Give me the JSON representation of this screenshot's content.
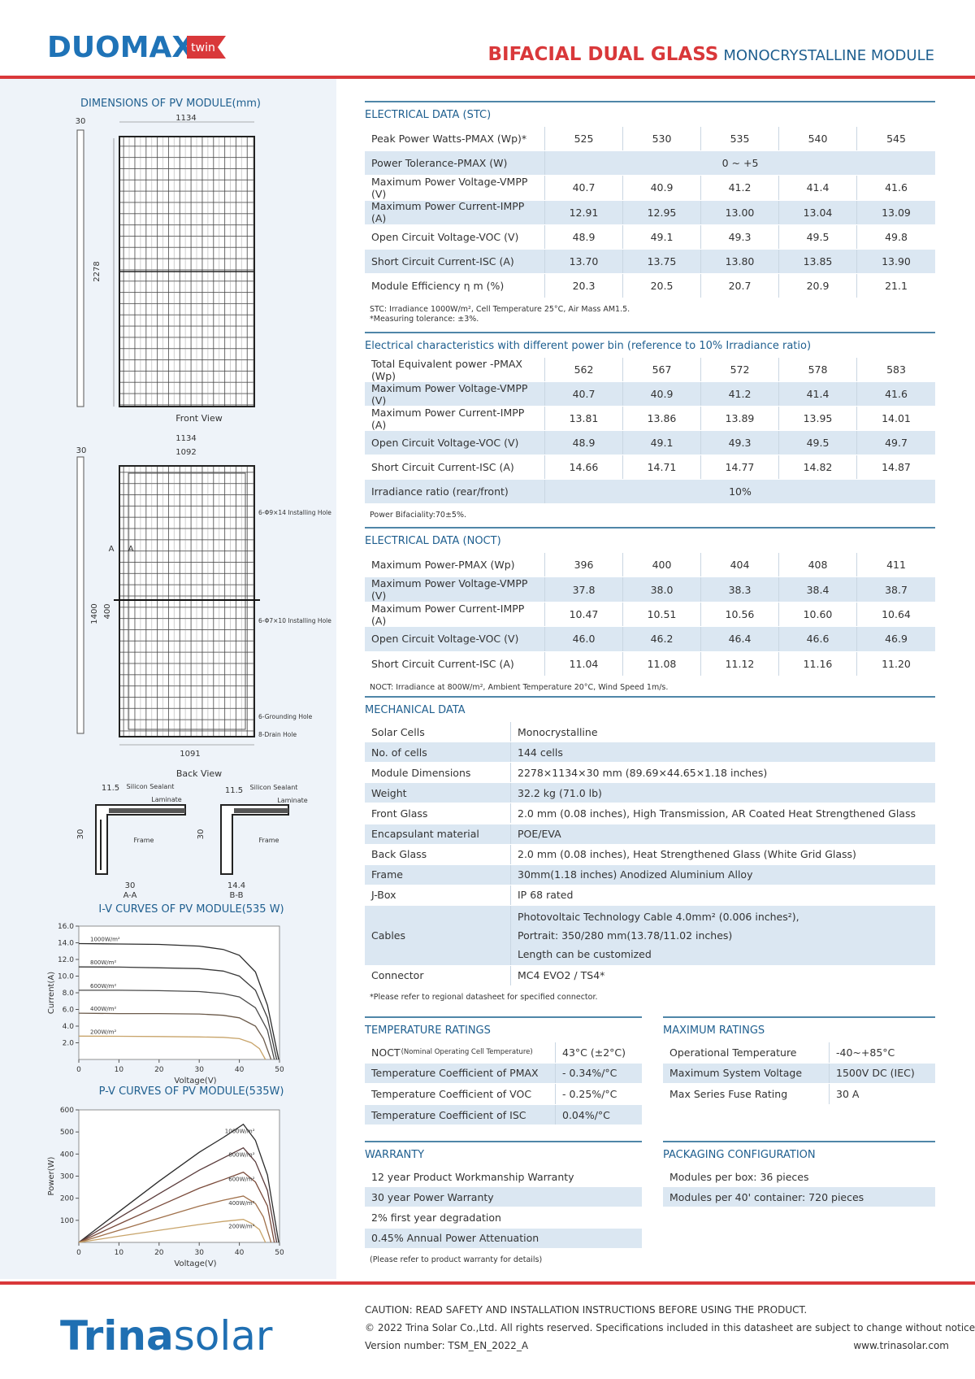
{
  "header": {
    "logo": "DUOMAX",
    "logo_badge": "twin",
    "title_bold": "BIFACIAL DUAL GLASS",
    "title_rest": "MONOCRYSTALLINE MODULE"
  },
  "drawings": {
    "title": "DIMENSIONS OF PV MODULE(mm)",
    "labels": [
      "30",
      "1134",
      "2278",
      "Front View",
      "1134",
      "1092",
      "30",
      "1400",
      "400",
      "A",
      "A",
      "6-Φ9×14 Installing Hole",
      "6-Φ7×10 Installing Hole",
      "6-Grounding Hole",
      "8-Drain Hole",
      "1091",
      "Back View",
      "11.5",
      "Silicon Sealant",
      "Laminate",
      "Frame",
      "30",
      "30",
      "A-A",
      "11.5",
      "Silicon Sealant",
      "Laminate",
      "Frame",
      "30",
      "14.4",
      "B-B"
    ]
  },
  "chart_data": [
    {
      "type": "line",
      "title": "I-V CURVES OF PV MODULE(535 W)",
      "x_label": "Voltage(V)",
      "y_label": "Current(A)",
      "xlim": [
        0,
        50
      ],
      "ylim": [
        0,
        16
      ],
      "xticks": [
        0,
        10,
        20,
        30,
        40,
        50
      ],
      "yticks": [
        {
          "value": 2,
          "label": "2.0"
        },
        {
          "value": 4,
          "label": "4.0"
        },
        {
          "value": 6,
          "label": "6.0"
        },
        {
          "value": 8,
          "label": "8.0"
        },
        {
          "value": 10,
          "label": "10.0"
        },
        {
          "value": 12,
          "label": "12.0"
        },
        {
          "value": 14,
          "label": "14.0"
        },
        {
          "value": 16,
          "label": "16.0"
        }
      ],
      "series": [
        {
          "name": "1000W/m²",
          "color": "#2b2b2b",
          "x": [
            0,
            10,
            20,
            30,
            36,
            40,
            44,
            47,
            49.8
          ],
          "values": [
            13.9,
            13.85,
            13.8,
            13.6,
            13.2,
            12.5,
            10.5,
            6.5,
            0
          ]
        },
        {
          "name": "800W/m²",
          "color": "#3a3a3a",
          "x": [
            0,
            10,
            20,
            30,
            36,
            40,
            44,
            47,
            49.3
          ],
          "values": [
            11.1,
            11.08,
            11.0,
            10.9,
            10.6,
            10.0,
            8.3,
            5.0,
            0
          ]
        },
        {
          "name": "600W/m²",
          "color": "#4a4a4a",
          "x": [
            0,
            10,
            20,
            30,
            36,
            40,
            44,
            47,
            48.7
          ],
          "values": [
            8.3,
            8.3,
            8.25,
            8.15,
            7.9,
            7.5,
            6.2,
            3.5,
            0
          ]
        },
        {
          "name": "400W/m²",
          "color": "#6b5a4a",
          "x": [
            0,
            10,
            20,
            30,
            36,
            40,
            44,
            46,
            47.9
          ],
          "values": [
            5.55,
            5.5,
            5.5,
            5.45,
            5.3,
            5.0,
            4.0,
            2.5,
            0
          ]
        },
        {
          "name": "200W/m²",
          "color": "#c8a46a",
          "x": [
            0,
            10,
            20,
            30,
            36,
            40,
            43,
            45,
            46.5
          ],
          "values": [
            2.8,
            2.78,
            2.75,
            2.7,
            2.65,
            2.5,
            2.0,
            1.3,
            0
          ]
        }
      ]
    },
    {
      "type": "line",
      "title": "P-V CURVES OF PV MODULE(535W)",
      "x_label": "Voltage(V)",
      "y_label": "Power(W)",
      "xlim": [
        0,
        50
      ],
      "ylim": [
        0,
        600
      ],
      "xticks": [
        0,
        10,
        20,
        30,
        40,
        50
      ],
      "yticks": [
        100,
        200,
        300,
        400,
        500,
        600
      ],
      "series": [
        {
          "name": "1000W/m²",
          "color": "#2b2b2b",
          "x": [
            0,
            10,
            20,
            30,
            36,
            41,
            44,
            47,
            49.8
          ],
          "values": [
            0,
            139,
            277,
            408,
            475,
            535,
            462,
            305,
            0
          ]
        },
        {
          "name": "800W/m²",
          "color": "#5a3b3b",
          "x": [
            0,
            10,
            20,
            30,
            36,
            41,
            44,
            47,
            49.3
          ],
          "values": [
            0,
            111,
            220,
            327,
            382,
            428,
            365,
            235,
            0
          ]
        },
        {
          "name": "600W/m²",
          "color": "#7a4a3a",
          "x": [
            0,
            10,
            20,
            30,
            36,
            41,
            44,
            47,
            48.7
          ],
          "values": [
            0,
            83,
            165,
            245,
            284,
            318,
            273,
            165,
            0
          ]
        },
        {
          "name": "400W/m²",
          "color": "#a0704a",
          "x": [
            0,
            10,
            20,
            30,
            36,
            41,
            44,
            46,
            47.9
          ],
          "values": [
            0,
            55,
            110,
            164,
            191,
            210,
            176,
            115,
            0
          ]
        },
        {
          "name": "200W/m²",
          "color": "#c8a46a",
          "x": [
            0,
            10,
            20,
            30,
            36,
            41,
            43,
            45,
            46.5
          ],
          "values": [
            0,
            28,
            55,
            81,
            95,
            104,
            86,
            58,
            0
          ]
        }
      ]
    }
  ],
  "stc": {
    "heading": "ELECTRICAL DATA (STC)",
    "rows": [
      {
        "label": "Peak Power Watts-PMAX (Wp)*",
        "values": [
          "525",
          "530",
          "535",
          "540",
          "545"
        ]
      },
      {
        "label": "Power Tolerance-PMAX (W)",
        "values": [
          "0 ~ +5"
        ]
      },
      {
        "label": "Maximum Power Voltage-VMPP (V)",
        "values": [
          "40.7",
          "40.9",
          "41.2",
          "41.4",
          "41.6"
        ]
      },
      {
        "label": "Maximum Power Current-IMPP (A)",
        "values": [
          "12.91",
          "12.95",
          "13.00",
          "13.04",
          "13.09"
        ]
      },
      {
        "label": "Open Circuit Voltage-VOC (V)",
        "values": [
          "48.9",
          "49.1",
          "49.3",
          "49.5",
          "49.8"
        ]
      },
      {
        "label": "Short Circuit Current-ISC (A)",
        "values": [
          "13.70",
          "13.75",
          "13.80",
          "13.85",
          "13.90"
        ]
      },
      {
        "label": "Module Efficiency η m (%)",
        "values": [
          "20.3",
          "20.5",
          "20.7",
          "20.9",
          "21.1"
        ]
      }
    ],
    "notes": [
      "STC: Irradiance 1000W/m², Cell Temperature 25°C, Air Mass AM1.5.",
      "*Measuring tolerance: ±3%."
    ]
  },
  "bifacial": {
    "heading": "Electrical characteristics with different power bin (reference to 10% Irradiance ratio)",
    "rows": [
      {
        "label": "Total Equivalent power -PMAX (Wp)",
        "values": [
          "562",
          "567",
          "572",
          "578",
          "583"
        ]
      },
      {
        "label": "Maximum Power Voltage-VMPP (V)",
        "values": [
          "40.7",
          "40.9",
          "41.2",
          "41.4",
          "41.6"
        ]
      },
      {
        "label": "Maximum Power Current-IMPP (A)",
        "values": [
          "13.81",
          "13.86",
          "13.89",
          "13.95",
          "14.01"
        ]
      },
      {
        "label": "Open Circuit Voltage-VOC (V)",
        "values": [
          "48.9",
          "49.1",
          "49.3",
          "49.5",
          "49.7"
        ]
      },
      {
        "label": "Short Circuit Current-ISC (A)",
        "values": [
          "14.66",
          "14.71",
          "14.77",
          "14.82",
          "14.87"
        ]
      },
      {
        "label": "Irradiance ratio (rear/front)",
        "values": [
          "10%"
        ]
      }
    ],
    "notes": [
      "Power Bifaciality:70±5%."
    ]
  },
  "noct": {
    "heading": "ELECTRICAL DATA (NOCT)",
    "rows": [
      {
        "label": "Maximum Power-PMAX (Wp)",
        "values": [
          "396",
          "400",
          "404",
          "408",
          "411"
        ]
      },
      {
        "label": "Maximum Power Voltage-VMPP (V)",
        "values": [
          "37.8",
          "38.0",
          "38.3",
          "38.4",
          "38.7"
        ]
      },
      {
        "label": "Maximum Power Current-IMPP (A)",
        "values": [
          "10.47",
          "10.51",
          "10.56",
          "10.60",
          "10.64"
        ]
      },
      {
        "label": "Open Circuit Voltage-VOC (V)",
        "values": [
          "46.0",
          "46.2",
          "46.4",
          "46.6",
          "46.9"
        ]
      },
      {
        "label": "Short Circuit Current-ISC (A)",
        "values": [
          "11.04",
          "11.08",
          "11.12",
          "11.16",
          "11.20"
        ]
      }
    ],
    "notes": [
      "NOCT: Irradiance at 800W/m², Ambient Temperature 20°C, Wind Speed 1m/s."
    ]
  },
  "mechanical": {
    "heading": "MECHANICAL DATA",
    "rows": [
      {
        "label": "Solar Cells",
        "values": [
          "Monocrystalline"
        ]
      },
      {
        "label": "No. of cells",
        "values": [
          "144 cells"
        ]
      },
      {
        "label": "Module Dimensions",
        "values": [
          "2278×1134×30 mm (89.69×44.65×1.18 inches)"
        ]
      },
      {
        "label": "Weight",
        "values": [
          "32.2 kg (71.0 lb)"
        ]
      },
      {
        "label": "Front Glass",
        "values": [
          "2.0 mm (0.08 inches), High Transmission, AR Coated Heat Strengthened Glass"
        ]
      },
      {
        "label": "Encapsulant material",
        "values": [
          "POE/EVA"
        ]
      },
      {
        "label": "Back Glass",
        "values": [
          "2.0 mm (0.08 inches), Heat Strengthened Glass (White Grid Glass)"
        ]
      },
      {
        "label": "Frame",
        "values": [
          "30mm(1.18 inches) Anodized Aluminium Alloy"
        ]
      },
      {
        "label": "J-Box",
        "values": [
          "IP 68 rated"
        ]
      },
      {
        "label": "Cables",
        "lines": [
          "Photovoltaic Technology Cable 4.0mm² (0.006 inches²),",
          "Portrait: 350/280 mm(13.78/11.02 inches)",
          "Length can be customized"
        ]
      },
      {
        "label": "Connector",
        "values": [
          "MC4 EVO2 / TS4*"
        ]
      }
    ],
    "notes": [
      "*Please refer to regional datasheet for specified connector."
    ]
  },
  "temperature": {
    "heading": "TEMPERATURE RATINGS",
    "rows": [
      {
        "label": "NOCT",
        "label_small": "(Nominal Operating Cell Temperature)",
        "values": [
          "43°C (±2°C)"
        ]
      },
      {
        "label": "Temperature Coefficient of PMAX",
        "values": [
          "- 0.34%/°C"
        ]
      },
      {
        "label": "Temperature Coefficient of VOC",
        "values": [
          "- 0.25%/°C"
        ]
      },
      {
        "label": "Temperature Coefficient of ISC",
        "values": [
          "0.04%/°C"
        ]
      }
    ]
  },
  "max_ratings": {
    "heading": "MAXIMUM RATINGS",
    "rows": [
      {
        "label": "Operational Temperature",
        "values": [
          "-40~+85°C"
        ]
      },
      {
        "label": "Maximum System Voltage",
        "values": [
          "1500V DC (IEC)"
        ]
      },
      {
        "label": "Max Series Fuse Rating",
        "values": [
          "30 A"
        ]
      }
    ]
  },
  "warranty": {
    "heading": "WARRANTY",
    "rows": [
      {
        "label": "12 year Product Workmanship Warranty"
      },
      {
        "label": "30 year Power Warranty"
      },
      {
        "label": "2% first year degradation"
      },
      {
        "label": "0.45% Annual Power Attenuation"
      }
    ],
    "notes": [
      "(Please refer to product warranty for details)"
    ]
  },
  "packaging": {
    "heading": "PACKAGING CONFIGURATION",
    "rows": [
      {
        "label": "Modules per box: 36 pieces"
      },
      {
        "label": "Modules per 40' container: 720 pieces"
      }
    ]
  },
  "footer": {
    "brand_bold": "Trina",
    "brand_rest": "solar",
    "lines": [
      "CAUTION: READ SAFETY AND INSTALLATION INSTRUCTIONS BEFORE USING THE PRODUCT.",
      "© 2022 Trina Solar Co.,Ltd. All rights reserved. Specifications included in this datasheet are subject to change without notice.",
      "Version number: TSM_EN_2022_A"
    ],
    "url": "www.trinasolar.com"
  }
}
